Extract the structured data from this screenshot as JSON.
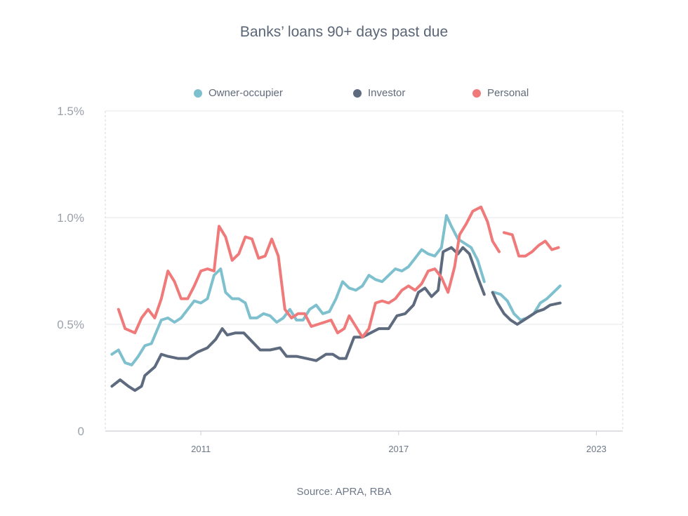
{
  "chart_data": {
    "type": "line",
    "title": "Banks’ loans 90+ days past due",
    "source": "Source: APRA, RBA",
    "xlabel": "",
    "ylabel": "",
    "ylim": [
      0,
      1.5
    ],
    "xlim": [
      2008.1,
      2023.8
    ],
    "yticks": [
      {
        "value": 0,
        "label": "0"
      },
      {
        "value": 0.5,
        "label": "0.5%"
      },
      {
        "value": 1.0,
        "label": "1.0%"
      },
      {
        "value": 1.5,
        "label": "1.5%"
      }
    ],
    "xticks": [
      {
        "value": 2011.0,
        "label": "2011"
      },
      {
        "value": 2017.0,
        "label": "2017"
      },
      {
        "value": 2023.0,
        "label": "2023"
      }
    ],
    "gridlines": "horizontal",
    "legend_position": "top",
    "series": [
      {
        "name": "Owner-occupier",
        "color": "#7fc0cf",
        "segments": [
          [
            [
              2008.3,
              0.36
            ],
            [
              2008.5,
              0.38
            ],
            [
              2008.7,
              0.32
            ],
            [
              2008.9,
              0.31
            ],
            [
              2009.1,
              0.35
            ],
            [
              2009.3,
              0.4
            ],
            [
              2009.5,
              0.41
            ],
            [
              2009.8,
              0.52
            ],
            [
              2010.0,
              0.53
            ],
            [
              2010.2,
              0.51
            ],
            [
              2010.4,
              0.53
            ],
            [
              2010.6,
              0.57
            ],
            [
              2010.8,
              0.61
            ],
            [
              2011.0,
              0.6
            ],
            [
              2011.2,
              0.62
            ],
            [
              2011.4,
              0.73
            ],
            [
              2011.6,
              0.76
            ],
            [
              2011.75,
              0.65
            ],
            [
              2011.95,
              0.62
            ],
            [
              2012.15,
              0.62
            ],
            [
              2012.35,
              0.6
            ],
            [
              2012.5,
              0.53
            ],
            [
              2012.7,
              0.53
            ],
            [
              2012.9,
              0.55
            ],
            [
              2013.1,
              0.54
            ],
            [
              2013.3,
              0.51
            ],
            [
              2013.5,
              0.53
            ],
            [
              2013.7,
              0.57
            ],
            [
              2013.9,
              0.52
            ],
            [
              2014.1,
              0.52
            ],
            [
              2014.3,
              0.57
            ],
            [
              2014.5,
              0.59
            ],
            [
              2014.7,
              0.55
            ],
            [
              2014.9,
              0.56
            ],
            [
              2015.1,
              0.62
            ],
            [
              2015.3,
              0.7
            ],
            [
              2015.5,
              0.67
            ],
            [
              2015.7,
              0.66
            ],
            [
              2015.9,
              0.68
            ],
            [
              2016.1,
              0.73
            ],
            [
              2016.3,
              0.71
            ],
            [
              2016.5,
              0.7
            ],
            [
              2016.7,
              0.73
            ],
            [
              2016.9,
              0.76
            ],
            [
              2017.1,
              0.75
            ],
            [
              2017.3,
              0.77
            ],
            [
              2017.5,
              0.81
            ],
            [
              2017.7,
              0.85
            ],
            [
              2017.9,
              0.83
            ],
            [
              2018.1,
              0.82
            ],
            [
              2018.3,
              0.86
            ],
            [
              2018.45,
              1.01
            ],
            [
              2018.6,
              0.96
            ],
            [
              2018.8,
              0.9
            ],
            [
              2019.0,
              0.88
            ],
            [
              2019.2,
              0.86
            ],
            [
              2019.4,
              0.8
            ],
            [
              2019.6,
              0.7
            ]
          ],
          [
            [
              2019.9,
              0.65
            ],
            [
              2020.1,
              0.64
            ],
            [
              2020.3,
              0.61
            ],
            [
              2020.5,
              0.55
            ],
            [
              2020.7,
              0.52
            ],
            [
              2020.9,
              0.53
            ],
            [
              2021.1,
              0.55
            ],
            [
              2021.3,
              0.6
            ],
            [
              2021.5,
              0.62
            ],
            [
              2021.7,
              0.65
            ],
            [
              2021.9,
              0.68
            ]
          ]
        ]
      },
      {
        "name": "Investor",
        "color": "#5e6a7d",
        "segments": [
          [
            [
              2008.3,
              0.21
            ],
            [
              2008.55,
              0.24
            ],
            [
              2008.8,
              0.21
            ],
            [
              2009.0,
              0.19
            ],
            [
              2009.2,
              0.21
            ],
            [
              2009.3,
              0.26
            ],
            [
              2009.6,
              0.3
            ],
            [
              2009.8,
              0.36
            ],
            [
              2010.0,
              0.35
            ],
            [
              2010.3,
              0.34
            ],
            [
              2010.6,
              0.34
            ],
            [
              2010.9,
              0.37
            ],
            [
              2011.2,
              0.39
            ],
            [
              2011.45,
              0.43
            ],
            [
              2011.65,
              0.48
            ],
            [
              2011.8,
              0.45
            ],
            [
              2012.05,
              0.46
            ],
            [
              2012.3,
              0.46
            ],
            [
              2012.55,
              0.42
            ],
            [
              2012.8,
              0.38
            ],
            [
              2013.1,
              0.38
            ],
            [
              2013.4,
              0.39
            ],
            [
              2013.6,
              0.35
            ],
            [
              2013.9,
              0.35
            ],
            [
              2014.2,
              0.34
            ],
            [
              2014.5,
              0.33
            ],
            [
              2014.8,
              0.36
            ],
            [
              2015.0,
              0.36
            ],
            [
              2015.2,
              0.34
            ],
            [
              2015.4,
              0.34
            ],
            [
              2015.65,
              0.44
            ],
            [
              2015.9,
              0.44
            ],
            [
              2016.15,
              0.46
            ],
            [
              2016.4,
              0.48
            ],
            [
              2016.7,
              0.48
            ],
            [
              2016.95,
              0.54
            ],
            [
              2017.2,
              0.55
            ],
            [
              2017.45,
              0.59
            ],
            [
              2017.6,
              0.65
            ],
            [
              2017.8,
              0.67
            ],
            [
              2018.0,
              0.63
            ],
            [
              2018.2,
              0.66
            ],
            [
              2018.35,
              0.84
            ],
            [
              2018.6,
              0.86
            ],
            [
              2018.8,
              0.83
            ],
            [
              2018.95,
              0.86
            ],
            [
              2019.15,
              0.83
            ],
            [
              2019.4,
              0.72
            ],
            [
              2019.6,
              0.64
            ]
          ],
          [
            [
              2019.85,
              0.65
            ],
            [
              2020.0,
              0.6
            ],
            [
              2020.2,
              0.55
            ],
            [
              2020.4,
              0.52
            ],
            [
              2020.6,
              0.5
            ],
            [
              2020.8,
              0.52
            ],
            [
              2021.0,
              0.54
            ],
            [
              2021.2,
              0.56
            ],
            [
              2021.4,
              0.57
            ],
            [
              2021.6,
              0.59
            ],
            [
              2021.9,
              0.6
            ]
          ]
        ]
      },
      {
        "name": "Personal",
        "color": "#f07a7a",
        "segments": [
          [
            [
              2008.5,
              0.57
            ],
            [
              2008.7,
              0.48
            ],
            [
              2009.0,
              0.46
            ],
            [
              2009.2,
              0.53
            ],
            [
              2009.4,
              0.57
            ],
            [
              2009.6,
              0.53
            ],
            [
              2009.8,
              0.62
            ],
            [
              2010.0,
              0.75
            ],
            [
              2010.2,
              0.7
            ],
            [
              2010.4,
              0.62
            ],
            [
              2010.6,
              0.62
            ],
            [
              2010.8,
              0.68
            ],
            [
              2011.0,
              0.75
            ],
            [
              2011.2,
              0.76
            ],
            [
              2011.4,
              0.75
            ],
            [
              2011.55,
              0.96
            ],
            [
              2011.75,
              0.91
            ],
            [
              2011.95,
              0.8
            ],
            [
              2012.15,
              0.83
            ],
            [
              2012.35,
              0.91
            ],
            [
              2012.55,
              0.9
            ],
            [
              2012.75,
              0.81
            ],
            [
              2012.95,
              0.82
            ],
            [
              2013.15,
              0.9
            ],
            [
              2013.35,
              0.82
            ],
            [
              2013.55,
              0.57
            ],
            [
              2013.75,
              0.53
            ],
            [
              2013.95,
              0.55
            ],
            [
              2014.15,
              0.55
            ],
            [
              2014.35,
              0.49
            ],
            [
              2014.55,
              0.5
            ],
            [
              2014.75,
              0.51
            ],
            [
              2014.95,
              0.52
            ],
            [
              2015.15,
              0.46
            ],
            [
              2015.35,
              0.48
            ],
            [
              2015.5,
              0.54
            ],
            [
              2015.7,
              0.49
            ],
            [
              2015.9,
              0.44
            ],
            [
              2016.1,
              0.48
            ],
            [
              2016.3,
              0.6
            ],
            [
              2016.5,
              0.61
            ],
            [
              2016.7,
              0.6
            ],
            [
              2016.9,
              0.62
            ],
            [
              2017.1,
              0.66
            ],
            [
              2017.3,
              0.68
            ],
            [
              2017.5,
              0.66
            ],
            [
              2017.7,
              0.69
            ],
            [
              2017.9,
              0.75
            ],
            [
              2018.1,
              0.76
            ],
            [
              2018.3,
              0.72
            ],
            [
              2018.5,
              0.65
            ],
            [
              2018.7,
              0.77
            ],
            [
              2018.85,
              0.92
            ],
            [
              2019.05,
              0.97
            ],
            [
              2019.25,
              1.03
            ],
            [
              2019.5,
              1.05
            ],
            [
              2019.7,
              0.98
            ],
            [
              2019.85,
              0.89
            ],
            [
              2020.05,
              0.84
            ]
          ],
          [
            [
              2020.2,
              0.93
            ],
            [
              2020.45,
              0.92
            ],
            [
              2020.65,
              0.82
            ],
            [
              2020.85,
              0.82
            ],
            [
              2021.05,
              0.84
            ],
            [
              2021.25,
              0.87
            ],
            [
              2021.45,
              0.89
            ],
            [
              2021.65,
              0.85
            ],
            [
              2021.85,
              0.86
            ]
          ]
        ]
      }
    ]
  }
}
